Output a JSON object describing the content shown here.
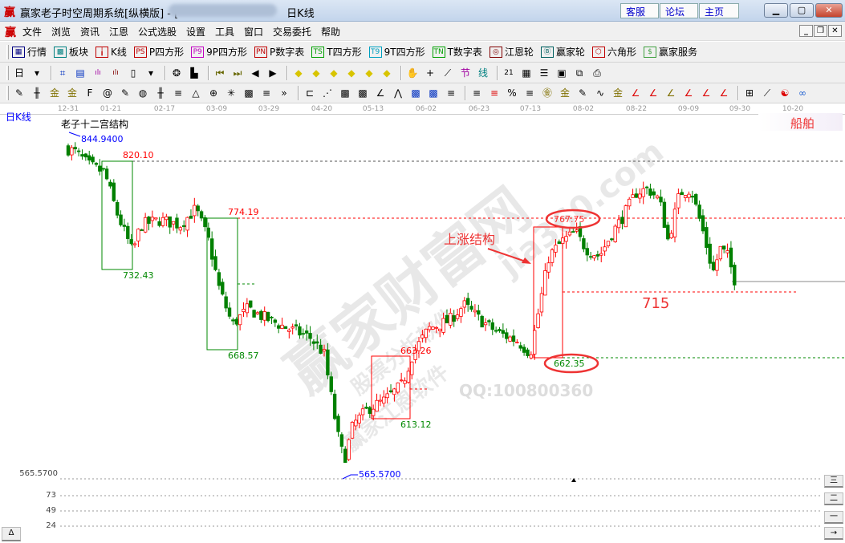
{
  "window": {
    "app_icon": "赢",
    "title": "赢家老子时空周期系统[纵横版] - [",
    "title_suffix": "日K线",
    "links": [
      "客服",
      "论坛",
      "主页"
    ],
    "controls": [
      "minimize",
      "maximize",
      "close"
    ]
  },
  "menu": {
    "icon": "赢",
    "items": [
      "文件",
      "浏览",
      "资讯",
      "江恩",
      "公式选股",
      "设置",
      "工具",
      "窗口",
      "交易委托",
      "帮助"
    ]
  },
  "toolbar1": [
    {
      "icon": "market-table-icon",
      "glyph": "▦",
      "color": "#000080",
      "label": "行情"
    },
    {
      "icon": "sector-blocks-icon",
      "glyph": "▩",
      "color": "#008080",
      "label": "板块"
    },
    {
      "icon": "candlestick-icon",
      "glyph": "╽",
      "color": "#c00000",
      "label": "K线"
    },
    {
      "icon": "ps-icon",
      "glyph": "PS",
      "color": "#c00000",
      "label": "P四方形"
    },
    {
      "icon": "p9-icon",
      "glyph": "P9",
      "color": "#c000c0",
      "label": "9P四方形"
    },
    {
      "icon": "pn-icon",
      "glyph": "PN",
      "color": "#c00000",
      "label": "P数字表"
    },
    {
      "icon": "ts-icon",
      "glyph": "TS",
      "color": "#00a000",
      "label": "T四方形"
    },
    {
      "icon": "t9-icon",
      "glyph": "T9",
      "color": "#00a0c0",
      "label": "9T四方形"
    },
    {
      "icon": "tn-icon",
      "glyph": "TN",
      "color": "#00a000",
      "label": "T数字表"
    },
    {
      "icon": "gann-wheel-icon",
      "glyph": "◎",
      "color": "#800000",
      "label": "江恩轮"
    },
    {
      "icon": "big-wheel-icon",
      "glyph": "Ⓑ",
      "color": "#006060",
      "label": "赢家轮"
    },
    {
      "icon": "hexagon-icon",
      "glyph": "⬡",
      "color": "#c00000",
      "label": "六角形"
    },
    {
      "icon": "dollar-icon",
      "glyph": "$",
      "color": "#40a040",
      "label": "赢家服务"
    }
  ],
  "toolbar2": [
    "period-day-icon",
    "dropdown-icon",
    "|",
    "grid-icon",
    "clipboard-icon",
    "bars3-icon",
    "bars9-icon",
    "candle-type-icon",
    "dropdown-icon",
    "|",
    "brain-icon",
    "histogram-icon",
    "|",
    "first-icon",
    "last-icon",
    "prev-icon",
    "next-icon",
    "|",
    "yellow-left-icon",
    "yellow-right-icon",
    "yellow-h-icon",
    "yellow-v-icon",
    "yellow-cross-icon",
    "yellow-expand-icon",
    "|",
    "hand-icon",
    "crosshair-icon",
    "line-draw-icon",
    "node-icon",
    "line-style-icon",
    "|",
    "calendar-icon",
    "calculator-icon",
    "notes-icon",
    "save-icon",
    "network-icon",
    "printer-icon"
  ],
  "toolbar3": [
    "pen-icon",
    "parallel-lines-icon",
    "gold-lines-icon",
    "gold-lines2-icon",
    "fib-f-icon",
    "spiral-icon",
    "pen2-icon",
    "circle-scale-icon",
    "hash-lines-icon",
    "n2-icon",
    "triangle-icon",
    "target-icon",
    "star-icon",
    "square-grid-icon",
    "channel-icon",
    "more-icon",
    "|",
    "box-icon",
    "fan-icon",
    "square-fan-icon",
    "square-fan2-icon",
    "angle-icon",
    "zigzag-icon",
    "grid-red-icon",
    "grid-box-icon",
    "diagonal-icon",
    "|",
    "ladder-icon",
    "percent-slash-icon",
    "percent-icon",
    "percent-lines-icon",
    "gold-circle-icon",
    "gold-level-icon",
    "pencil-tool-icon",
    "wave-icon",
    "gold-icon",
    "j-angle-icon",
    "f-angle-icon",
    "gold-angle-icon",
    "shen-angle-icon",
    "ying-angle-icon",
    "si-angle-icon",
    "|",
    "table-grid-icon",
    "chart-line-icon",
    "yin-yang-icon",
    "infinity-icon"
  ],
  "chart_data": {
    "type": "candlestick",
    "period_label": "日K线",
    "title": "老子十二宫结构",
    "sector_label": "船舶",
    "x_ticks": [
      "12-31",
      "01-21",
      "02-17",
      "03-09",
      "03-29",
      "04-20",
      "05-13",
      "06-02",
      "06-23",
      "07-13",
      "08-02",
      "08-22",
      "09-09",
      "09-30",
      "10-20"
    ],
    "close_path": [
      [
        "12-31",
        830
      ],
      [
        "01-04",
        827
      ],
      [
        "01-10",
        817
      ],
      [
        "01-18",
        811
      ],
      [
        "01-24",
        779
      ],
      [
        "02-01",
        747
      ],
      [
        "02-05",
        769
      ],
      [
        "02-15",
        773
      ],
      [
        "02-23",
        769
      ],
      [
        "03-01",
        782
      ],
      [
        "03-06",
        756
      ],
      [
        "03-10",
        718
      ],
      [
        "03-15",
        689
      ],
      [
        "03-21",
        702
      ],
      [
        "03-27",
        695
      ],
      [
        "04-06",
        686
      ],
      [
        "04-15",
        679
      ],
      [
        "04-21",
        666
      ],
      [
        "04-27",
        602
      ],
      [
        "04-30",
        580
      ],
      [
        "05-04",
        609
      ],
      [
        "05-11",
        622
      ],
      [
        "05-17",
        628
      ],
      [
        "05-24",
        641
      ],
      [
        "05-28",
        666
      ],
      [
        "06-03",
        686
      ],
      [
        "06-11",
        692
      ],
      [
        "06-17",
        705
      ],
      [
        "06-24",
        692
      ],
      [
        "06-30",
        683
      ],
      [
        "07-08",
        676
      ],
      [
        "07-13",
        666
      ],
      [
        "07-16",
        699
      ],
      [
        "07-20",
        744
      ],
      [
        "07-25",
        756
      ],
      [
        "07-30",
        763
      ],
      [
        "08-03",
        750
      ],
      [
        "08-08",
        744
      ],
      [
        "08-13",
        763
      ],
      [
        "08-17",
        776
      ],
      [
        "08-22",
        795
      ],
      [
        "08-26",
        798
      ],
      [
        "08-30",
        789
      ],
      [
        "09-02",
        756
      ],
      [
        "09-06",
        795
      ],
      [
        "09-10",
        798
      ],
      [
        "09-15",
        763
      ],
      [
        "09-19",
        731
      ],
      [
        "09-22",
        750
      ],
      [
        "09-25",
        744
      ],
      [
        "09-28",
        724
      ]
    ],
    "price_labels": {
      "high": "844.9400",
      "low": "565.5700",
      "axis_low": "565.5700",
      "level_820": "820.10",
      "low_732": "732.43",
      "level_774": "774.19",
      "low_668": "668.57",
      "level_663": "663.26",
      "low_613": "613.12",
      "level_767": "767.75",
      "low_662": "662.35",
      "target": "715"
    },
    "annotation": "上涨结构",
    "lower_panel_ticks": [
      "73",
      "49",
      "24"
    ],
    "colors": {
      "up": "#ff0000",
      "down": "#008000",
      "support": "#008000",
      "resistance": "#ff0000"
    }
  },
  "watermark": {
    "main": "赢家财富网",
    "sub": "股票分析软件",
    "site": "jia360.com",
    "sub2": "赢家江恩软件",
    "qq": "QQ:100800360"
  },
  "side_buttons": [
    "三",
    "二",
    "一",
    "→"
  ],
  "corner_button": "Δ"
}
